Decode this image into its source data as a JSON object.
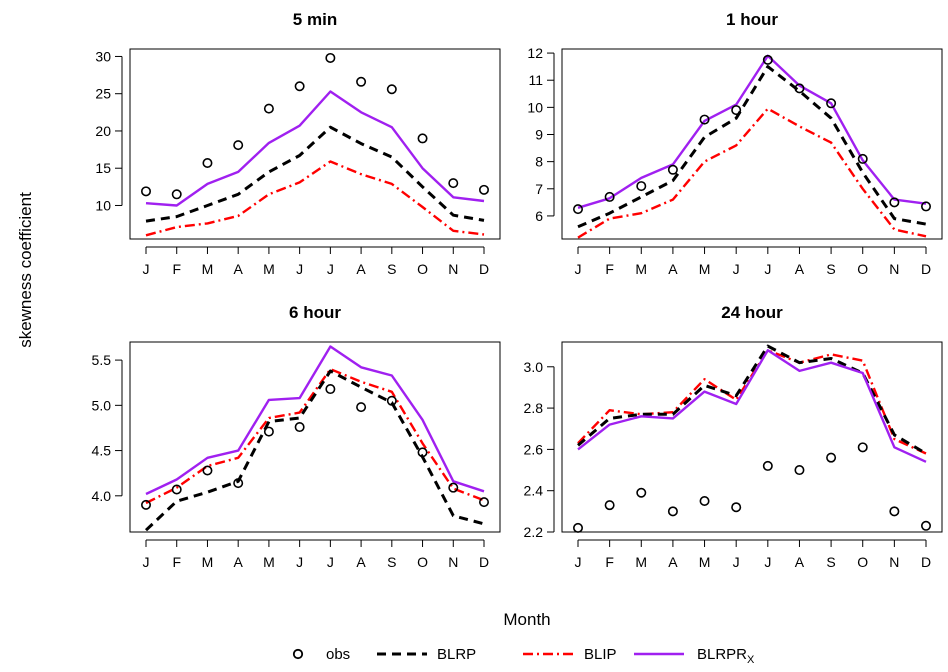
{
  "chart_data": {
    "type": "line",
    "ylabel": "skewness coefficient",
    "xlabel": "Month",
    "categories": [
      "J",
      "F",
      "M",
      "A",
      "M",
      "J",
      "J",
      "A",
      "S",
      "O",
      "N",
      "D"
    ],
    "legend": {
      "placement": "bottom",
      "entries": [
        {
          "label": "obs",
          "style": "circle",
          "color": "#000000"
        },
        {
          "label": "BLRP",
          "style": "dashed",
          "color": "#000000"
        },
        {
          "label": "BLIP",
          "style": "dashdot",
          "color": "#ff0000"
        },
        {
          "label": "BLRPR",
          "subscript": "X",
          "style": "solid",
          "color": "#a020f0"
        }
      ]
    },
    "panels": [
      {
        "title": "5 min",
        "ylim": [
          5.5,
          31
        ],
        "yticks": [
          10,
          15,
          20,
          25,
          30
        ],
        "series": [
          {
            "name": "obs",
            "values": [
              11.9,
              11.5,
              15.7,
              18.1,
              23.0,
              26.0,
              29.8,
              26.6,
              25.6,
              19.0,
              13.0,
              12.1
            ]
          },
          {
            "name": "BLRP",
            "values": [
              7.9,
              8.5,
              10.0,
              11.5,
              14.5,
              16.7,
              20.5,
              18.3,
              16.5,
              12.5,
              8.7,
              8.0
            ]
          },
          {
            "name": "BLIP",
            "values": [
              6.0,
              7.1,
              7.6,
              8.6,
              11.5,
              13.1,
              15.9,
              14.2,
              12.9,
              9.8,
              6.6,
              6.1
            ]
          },
          {
            "name": "BLRPRX",
            "values": [
              10.3,
              10.0,
              12.9,
              14.5,
              18.4,
              20.7,
              25.3,
              22.5,
              20.5,
              15.0,
              11.1,
              10.6
            ]
          }
        ]
      },
      {
        "title": "1 hour",
        "ylim": [
          5.15,
          12.15
        ],
        "yticks": [
          6,
          7,
          8,
          9,
          10,
          11,
          12
        ],
        "series": [
          {
            "name": "obs",
            "values": [
              6.25,
              6.7,
              7.1,
              7.7,
              9.55,
              9.9,
              11.75,
              10.7,
              10.15,
              8.1,
              6.5,
              6.35
            ]
          },
          {
            "name": "BLRP",
            "values": [
              5.6,
              6.1,
              6.7,
              7.3,
              8.9,
              9.6,
              11.5,
              10.6,
              9.6,
              7.6,
              5.9,
              5.7
            ]
          },
          {
            "name": "BLIP",
            "values": [
              5.2,
              5.9,
              6.1,
              6.6,
              8.0,
              8.6,
              9.95,
              9.3,
              8.7,
              7.0,
              5.5,
              5.25
            ]
          },
          {
            "name": "BLRPRX",
            "values": [
              6.3,
              6.65,
              7.4,
              7.9,
              9.5,
              10.1,
              11.9,
              10.8,
              10.15,
              8.05,
              6.6,
              6.45
            ]
          }
        ]
      },
      {
        "title": "6 hour",
        "ylim": [
          3.6,
          5.7
        ],
        "yticks": [
          4.0,
          4.5,
          5.0,
          5.5
        ],
        "series": [
          {
            "name": "obs",
            "values": [
              3.9,
              4.07,
              4.28,
              4.14,
              4.71,
              4.76,
              5.18,
              4.98,
              5.05,
              4.48,
              4.09,
              3.93
            ]
          },
          {
            "name": "BLRP",
            "values": [
              3.62,
              3.94,
              4.04,
              4.16,
              4.82,
              4.86,
              5.38,
              5.2,
              5.03,
              4.43,
              3.78,
              3.69
            ]
          },
          {
            "name": "BLIP",
            "values": [
              3.92,
              4.09,
              4.33,
              4.42,
              4.86,
              4.92,
              5.4,
              5.26,
              5.15,
              4.58,
              4.08,
              3.95
            ]
          },
          {
            "name": "BLRPRX",
            "values": [
              4.02,
              4.18,
              4.42,
              4.5,
              5.06,
              5.08,
              5.65,
              5.42,
              5.33,
              4.84,
              4.16,
              4.05
            ]
          }
        ]
      },
      {
        "title": "24 hour",
        "ylim": [
          2.2,
          3.12
        ],
        "yticks": [
          2.2,
          2.4,
          2.6,
          2.8,
          3.0
        ],
        "series": [
          {
            "name": "obs",
            "values": [
              2.22,
              2.33,
              2.39,
              2.3,
              2.35,
              2.32,
              2.52,
              2.5,
              2.56,
              2.61,
              2.3,
              2.23
            ]
          },
          {
            "name": "BLRP",
            "values": [
              2.62,
              2.75,
              2.77,
              2.77,
              2.91,
              2.86,
              3.1,
              3.02,
              3.04,
              2.97,
              2.67,
              2.58
            ]
          },
          {
            "name": "BLIP",
            "values": [
              2.63,
              2.79,
              2.77,
              2.78,
              2.94,
              2.84,
              3.08,
              3.02,
              3.06,
              3.03,
              2.65,
              2.58
            ]
          },
          {
            "name": "BLRPRX",
            "values": [
              2.6,
              2.72,
              2.76,
              2.75,
              2.88,
              2.82,
              3.08,
              2.98,
              3.02,
              2.97,
              2.61,
              2.54
            ]
          }
        ]
      }
    ]
  }
}
